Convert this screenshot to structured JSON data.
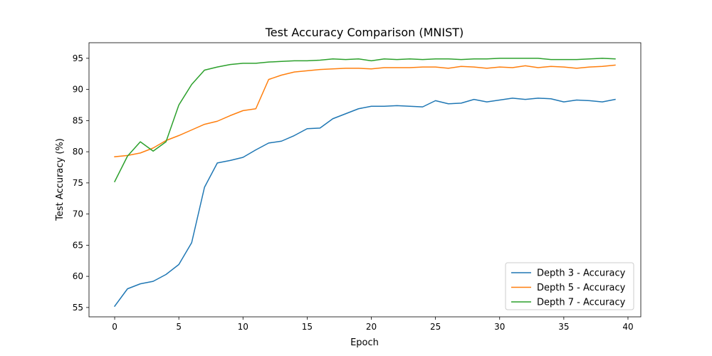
{
  "chart_data": {
    "type": "line",
    "title": "Test Accuracy Comparison (MNIST)",
    "xlabel": "Epoch",
    "ylabel": "Test Accuracy (%)",
    "xlim": [
      -2,
      41
    ],
    "ylim": [
      53.5,
      97.5
    ],
    "xticks": [
      0,
      5,
      10,
      15,
      20,
      25,
      30,
      35,
      40
    ],
    "yticks": [
      55,
      60,
      65,
      70,
      75,
      80,
      85,
      90,
      95
    ],
    "grid": false,
    "legend_position": "lower-right",
    "x": [
      0,
      1,
      2,
      3,
      4,
      5,
      6,
      7,
      8,
      9,
      10,
      11,
      12,
      13,
      14,
      15,
      16,
      17,
      18,
      19,
      20,
      21,
      22,
      23,
      24,
      25,
      26,
      27,
      28,
      29,
      30,
      31,
      32,
      33,
      34,
      35,
      36,
      37,
      38,
      39
    ],
    "series": [
      {
        "name": "Depth 3 - Accuracy",
        "color": "#1f77b4",
        "values": [
          55.2,
          58.0,
          58.8,
          59.2,
          60.3,
          61.9,
          65.4,
          74.3,
          78.2,
          78.6,
          79.1,
          80.3,
          81.4,
          81.7,
          82.6,
          83.7,
          83.8,
          85.3,
          86.1,
          86.9,
          87.3,
          87.3,
          87.4,
          87.3,
          87.2,
          88.2,
          87.7,
          87.8,
          88.4,
          88.0,
          88.3,
          88.6,
          88.4,
          88.6,
          88.5,
          88.0,
          88.3,
          88.2,
          88.0,
          88.4
        ]
      },
      {
        "name": "Depth 5 - Accuracy",
        "color": "#ff7f0e",
        "values": [
          79.2,
          79.4,
          79.8,
          80.6,
          81.8,
          82.6,
          83.5,
          84.4,
          84.9,
          85.8,
          86.6,
          86.9,
          91.6,
          92.3,
          92.8,
          93.0,
          93.2,
          93.3,
          93.4,
          93.4,
          93.3,
          93.5,
          93.5,
          93.5,
          93.6,
          93.6,
          93.4,
          93.7,
          93.6,
          93.4,
          93.6,
          93.5,
          93.8,
          93.5,
          93.7,
          93.6,
          93.4,
          93.6,
          93.7,
          93.9
        ]
      },
      {
        "name": "Depth 7 - Accuracy",
        "color": "#2ca02c",
        "values": [
          75.2,
          79.3,
          81.6,
          80.1,
          81.6,
          87.5,
          90.8,
          93.1,
          93.6,
          94.0,
          94.2,
          94.2,
          94.4,
          94.5,
          94.6,
          94.6,
          94.7,
          94.9,
          94.8,
          94.9,
          94.6,
          94.9,
          94.8,
          94.9,
          94.8,
          94.9,
          94.9,
          94.8,
          94.9,
          94.9,
          95.0,
          95.0,
          95.0,
          95.0,
          94.8,
          94.8,
          94.8,
          94.9,
          95.0,
          94.9
        ]
      }
    ]
  }
}
